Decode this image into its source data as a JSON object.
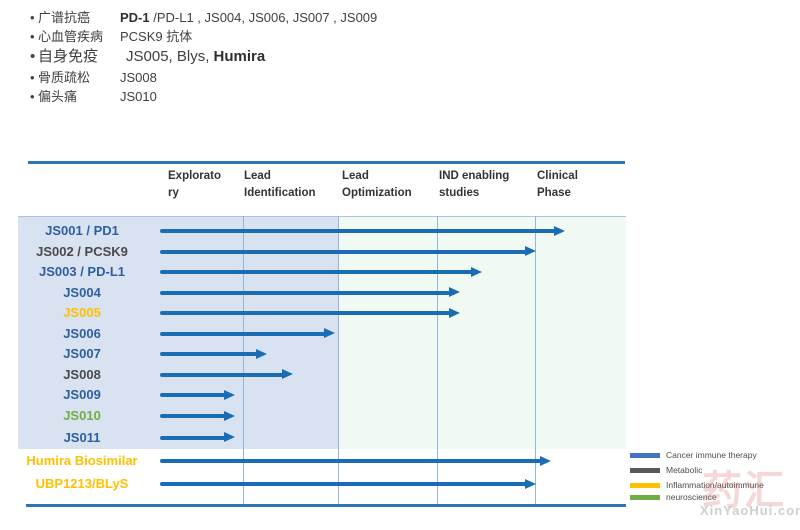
{
  "summary_list": {
    "items": [
      {
        "term": "广谱抗癌",
        "big": false,
        "parts": [
          {
            "text": "PD-1 ",
            "bold": true
          },
          {
            "text": "/PD-L1 , JS004, JS006, JS007 , JS009",
            "bold": false
          }
        ]
      },
      {
        "term": "心血管疾病",
        "big": false,
        "parts": [
          {
            "text": "PCSK9 抗体",
            "bold": false
          }
        ]
      },
      {
        "term": "自身免疫",
        "big": true,
        "parts": [
          {
            "text": "JS005, Blys, ",
            "bold": false
          },
          {
            "text": "Humira",
            "bold": true
          }
        ]
      },
      {
        "term": "骨质疏松",
        "big": false,
        "parts": [
          {
            "text": "JS008",
            "bold": false
          }
        ]
      },
      {
        "term": "偏头痛",
        "big": false,
        "parts": [
          {
            "text": "JS010",
            "bold": false
          }
        ]
      }
    ]
  },
  "chart_data": {
    "type": "bar",
    "orientation": "horizontal",
    "title": "",
    "phases": [
      "Exploratory",
      "Lead Identification",
      "Lead Optimization",
      "IND enabling studies",
      "Clinical Phase"
    ],
    "phase_header_lines": [
      "Explorato\nry",
      "Lead\nIdentification",
      "Lead\nOptimization",
      "IND enabling\nstudies",
      "Clinical\nPhase"
    ],
    "xlim": [
      0,
      5
    ],
    "x_unit": "pipeline phase (0 = start Exploratory, 5 = end Clinical Phase)",
    "grid": true,
    "rows": [
      {
        "name": "JS001 / PD1",
        "category": "Cancer immune therapy",
        "label_color": "#2e5fa3",
        "phase_progress": 4.35
      },
      {
        "name": "JS002 / PCSK9",
        "category": "Metabolic",
        "label_color": "#4a4a4a",
        "phase_progress": 4.03
      },
      {
        "name": "JS003 / PD-L1",
        "category": "Cancer immune therapy",
        "label_color": "#2e5fa3",
        "phase_progress": 3.45
      },
      {
        "name": "JS004",
        "category": "Cancer immune therapy",
        "label_color": "#2e5fa3",
        "phase_progress": 3.22
      },
      {
        "name": "JS005",
        "category": "Inflammation/autoimmune",
        "label_color": "#ffc000",
        "phase_progress": 3.22
      },
      {
        "name": "JS006",
        "category": "Cancer immune therapy",
        "label_color": "#2e5fa3",
        "phase_progress": 1.88
      },
      {
        "name": "JS007",
        "category": "Cancer immune therapy",
        "label_color": "#2e5fa3",
        "phase_progress": 1.15
      },
      {
        "name": "JS008",
        "category": "Metabolic",
        "label_color": "#4a4a4a",
        "phase_progress": 1.43
      },
      {
        "name": "JS009",
        "category": "Cancer immune therapy",
        "label_color": "#2e5fa3",
        "phase_progress": 0.8
      },
      {
        "name": "JS010",
        "category": "neuroscience",
        "label_color": "#6fae46",
        "phase_progress": 0.8
      },
      {
        "name": "JS011",
        "category": "Cancer immune therapy",
        "label_color": "#2e5fa3",
        "phase_progress": 0.8
      },
      {
        "name": "Humira Biosimilar",
        "category": "Inflammation/autoimmune",
        "label_color": "#ffc000",
        "phase_progress": 4.2
      },
      {
        "name": "UBP1213/BLyS",
        "category": "Inflammation/autoimmune",
        "label_color": "#ffc000",
        "phase_progress": 4.03
      }
    ]
  },
  "legend": {
    "items": [
      {
        "label": "Cancer immune therapy",
        "color": "#4472c4"
      },
      {
        "label": "Metabolic",
        "color": "#595959"
      },
      {
        "label": "Inflammation/autoimmune",
        "color": "#ffc000"
      },
      {
        "label": "neuroscience",
        "color": "#70ad47"
      }
    ]
  },
  "watermark": {
    "cn": "药汇",
    "url": "XinYaoHui.com"
  },
  "colors": {
    "arrow": "#1a6db5",
    "band_blue": "#d8e2f0",
    "band_green": "#f0f9f2",
    "rule": "#2e75b6",
    "grid": "#8fb8d8"
  }
}
